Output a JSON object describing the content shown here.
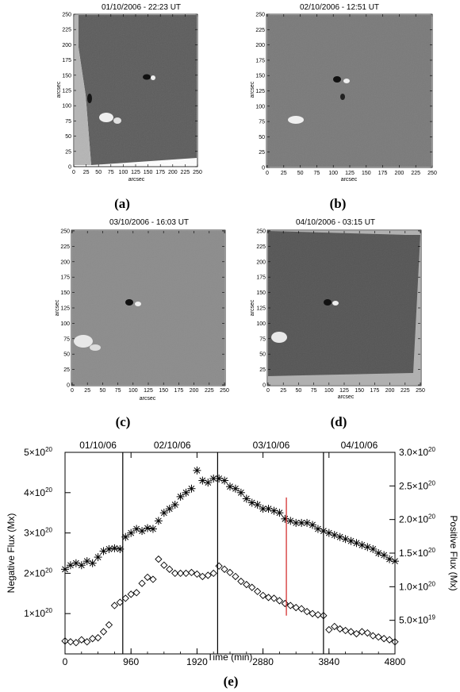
{
  "panels": [
    {
      "title": "01/10/2006 - 22:23 UT",
      "caption": "(a)",
      "xlabel": "arcsec",
      "ylabel": "arcsec"
    },
    {
      "title": "02/10/2006 - 12:51 UT",
      "caption": "(b)",
      "xlabel": "arcsec",
      "ylabel": "arcsec"
    },
    {
      "title": "03/10/2006 - 16:03 UT",
      "caption": "(c)",
      "xlabel": "arcsec",
      "ylabel": "arcsec"
    },
    {
      "title": "04/10/2006 - 03:15 UT",
      "caption": "(d)",
      "xlabel": "arcsec",
      "ylabel": "arcsec"
    }
  ],
  "panel_ticks": [
    "0",
    "25",
    "50",
    "75",
    "100",
    "125",
    "150",
    "175",
    "200",
    "225",
    "250"
  ],
  "chart_data": {
    "type": "scatter",
    "caption": "(e)",
    "xlabel": "Time (min)",
    "ylabel_left": "Negative Flux (Mx)",
    "ylabel_right": "Positive Flux (Mx)",
    "xlim": [
      0,
      4800
    ],
    "ylim_left": [
      0,
      5e+20
    ],
    "ylim_right": [
      0,
      3e+20
    ],
    "x_ticks": [
      "0",
      "960",
      "1920",
      "2880",
      "3840",
      "4800"
    ],
    "x_tick_values": [
      0,
      960,
      1920,
      2880,
      3840,
      4800
    ],
    "left_ticks": [
      {
        "value": 1e+20,
        "mant": "1×10",
        "exp": "20"
      },
      {
        "value": 2e+20,
        "mant": "2×10",
        "exp": "20"
      },
      {
        "value": 3e+20,
        "mant": "3×10",
        "exp": "20"
      },
      {
        "value": 4e+20,
        "mant": "4×10",
        "exp": "20"
      },
      {
        "value": 5e+20,
        "mant": "5×10",
        "exp": "20"
      }
    ],
    "right_ticks": [
      {
        "value": 5e+19,
        "mant": "5.0×10",
        "exp": "19"
      },
      {
        "value": 1e+20,
        "mant": "1.0×10",
        "exp": "20"
      },
      {
        "value": 1.5e+20,
        "mant": "1.5×10",
        "exp": "20"
      },
      {
        "value": 2e+20,
        "mant": "2.0×10",
        "exp": "20"
      },
      {
        "value": 2.5e+20,
        "mant": "2.5×10",
        "exp": "20"
      },
      {
        "value": 3e+20,
        "mant": "3.0×10",
        "exp": "20"
      }
    ],
    "day_labels": [
      {
        "text": "01/10/06",
        "x": 480
      },
      {
        "text": "02/10/06",
        "x": 1560
      },
      {
        "text": "03/10/06",
        "x": 3000
      },
      {
        "text": "04/10/06",
        "x": 4280
      }
    ],
    "day_boundaries": [
      840,
      2220,
      3760
    ],
    "red_marker": {
      "x": 3220,
      "y_range": [
        9.5e+19,
        3.88e+20
      ]
    },
    "series": [
      {
        "marker": "asterisk",
        "axis": "left",
        "x": [
          0,
          80,
          160,
          240,
          320,
          400,
          480,
          560,
          640,
          720,
          800,
          880,
          960,
          1040,
          1120,
          1200,
          1280,
          1360,
          1440,
          1520,
          1600,
          1680,
          1760,
          1840,
          1920,
          2000,
          2080,
          2160,
          2240,
          2320,
          2400,
          2480,
          2560,
          2640,
          2720,
          2800,
          2880,
          2960,
          3040,
          3120,
          3200,
          3280,
          3360,
          3440,
          3520,
          3600,
          3680,
          3760,
          3840,
          3920,
          4000,
          4080,
          4160,
          4240,
          4320,
          4400,
          4480,
          4560,
          4640,
          4720,
          4800
        ],
        "y": [
          2.1e+20,
          2.2e+20,
          2.25e+20,
          2.2e+20,
          2.3e+20,
          2.25e+20,
          2.4e+20,
          2.55e+20,
          2.6e+20,
          2.62e+20,
          2.6e+20,
          2.9e+20,
          3e+20,
          3.1e+20,
          3.05e+20,
          3.12e+20,
          3.1e+20,
          3.3e+20,
          3.5e+20,
          3.6e+20,
          3.7e+20,
          3.9e+20,
          4e+20,
          4.1e+20,
          4.55e+20,
          4.3e+20,
          4.25e+20,
          4.35e+20,
          4.35e+20,
          4.3e+20,
          4.15e+20,
          4.1e+20,
          4e+20,
          3.85e+20,
          3.75e+20,
          3.7e+20,
          3.6e+20,
          3.6e+20,
          3.55e+20,
          3.5e+20,
          3.35e+20,
          3.3e+20,
          3.25e+20,
          3.25e+20,
          3.25e+20,
          3.2e+20,
          3.1e+20,
          3.05e+20,
          3e+20,
          2.95e+20,
          2.9e+20,
          2.85e+20,
          2.8e+20,
          2.75e+20,
          2.7e+20,
          2.65e+20,
          2.6e+20,
          2.5e+20,
          2.45e+20,
          2.35e+20,
          2.3e+20
        ]
      },
      {
        "marker": "diamond",
        "axis": "left",
        "x": [
          0,
          80,
          160,
          240,
          320,
          400,
          480,
          560,
          640,
          720,
          800,
          880,
          960,
          1040,
          1120,
          1200,
          1280,
          1360,
          1440,
          1520,
          1600,
          1680,
          1760,
          1840,
          1920,
          2000,
          2080,
          2160,
          2240,
          2320,
          2400,
          2480,
          2560,
          2640,
          2720,
          2800,
          2880,
          2960,
          3040,
          3120,
          3200,
          3280,
          3360,
          3440,
          3520,
          3600,
          3680,
          3760,
          3840,
          3920,
          4000,
          4080,
          4160,
          4240,
          4320,
          4400,
          4480,
          4560,
          4640,
          4720,
          4800
        ],
        "y": [
          3.2e+19,
          3e+19,
          2.8e+19,
          3.5e+19,
          3e+19,
          3.8e+19,
          4e+19,
          5.5e+19,
          7.2e+19,
          1.2e+20,
          1.28e+20,
          1.38e+20,
          1.48e+20,
          1.52e+20,
          1.75e+20,
          1.9e+20,
          1.85e+20,
          2.35e+20,
          2.2e+20,
          2.1e+20,
          2e+20,
          2e+20,
          2e+20,
          2.02e+20,
          1.98e+20,
          1.92e+20,
          1.95e+20,
          2e+20,
          2.18e+20,
          2.1e+20,
          2.02e+20,
          1.92e+20,
          1.8e+20,
          1.72e+20,
          1.65e+20,
          1.55e+20,
          1.45e+20,
          1.4e+20,
          1.38e+20,
          1.32e+20,
          1.25e+20,
          1.2e+20,
          1.15e+20,
          1.12e+20,
          1.05e+20,
          1e+20,
          9.7e+19,
          9.5e+19,
          6e+19,
          6.8e+19,
          6.2e+19,
          5.8e+19,
          5.5e+19,
          5e+19,
          5.5e+19,
          5.2e+19,
          4.5e+19,
          4.2e+19,
          3.8e+19,
          3.5e+19,
          3e+19
        ]
      }
    ]
  }
}
